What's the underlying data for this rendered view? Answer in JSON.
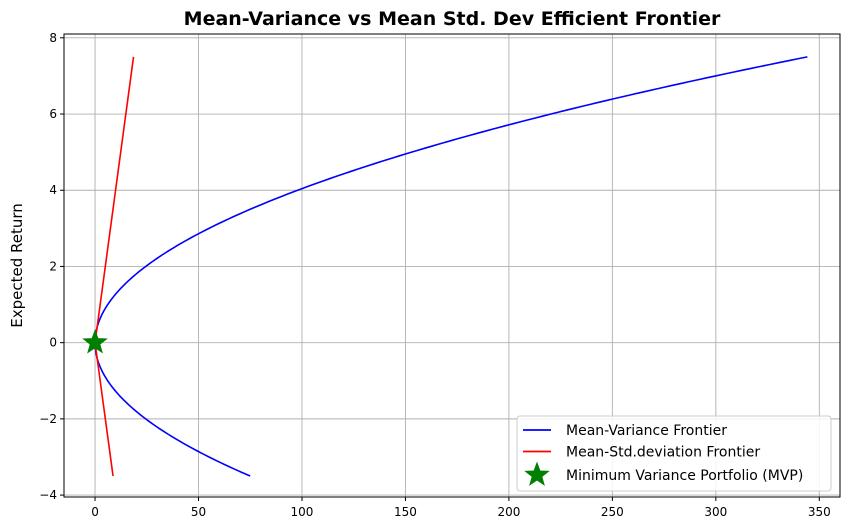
{
  "chart_data": {
    "type": "line",
    "title": "Mean-Variance vs Mean Std. Dev Efficient Frontier",
    "xlabel": "",
    "ylabel": "Expected Return",
    "xlim": [
      -15,
      360
    ],
    "ylim": [
      -4.05,
      8.1
    ],
    "xticks": [
      0,
      50,
      100,
      150,
      200,
      250,
      300,
      350
    ],
    "yticks": [
      -4,
      -2,
      0,
      2,
      4,
      6,
      8
    ],
    "xtick_labels": [
      "0",
      "50",
      "100",
      "150",
      "200",
      "250",
      "300",
      "350"
    ],
    "ytick_labels": [
      "−4",
      "−2",
      "0",
      "2",
      "4",
      "6",
      "8"
    ],
    "grid": true,
    "legend_position": "lower-right",
    "series": [
      {
        "name": "Mean-Variance Frontier",
        "color": "#0000ff",
        "x": [
          75,
          61.2,
          48.6,
          37.2,
          27.1,
          18.2,
          10.6,
          4.3,
          0,
          0.25,
          4.3,
          10.6,
          18.2,
          27.1,
          37.2,
          48.6,
          61.2,
          75,
          90,
          106.3,
          123.7,
          142.5,
          162.4,
          183.6,
          206,
          229.6,
          254.4,
          280.5,
          307.8,
          336.3,
          344
        ],
        "y": [
          -3.5,
          -3.1,
          -2.7,
          -2.3,
          -1.9,
          -1.5,
          -1.1,
          -0.7,
          0,
          0.2,
          0.7,
          1.1,
          1.5,
          1.9,
          2.3,
          2.7,
          3.1,
          3.5,
          3.9,
          4.3,
          4.7,
          5.1,
          5.5,
          5.9,
          6.3,
          6.7,
          7.1,
          7.5,
          7.9,
          8.3,
          7.5
        ]
      },
      {
        "name": "Mean-Std.deviation Frontier",
        "color": "#ff0000",
        "x": [
          8.7,
          0,
          18.6
        ],
        "y": [
          -3.5,
          0,
          7.5
        ]
      }
    ],
    "markers": [
      {
        "name": "Minimum Variance Portfolio (MVP)",
        "color": "#008000",
        "shape": "star",
        "x": 0,
        "y": 0
      }
    ]
  }
}
